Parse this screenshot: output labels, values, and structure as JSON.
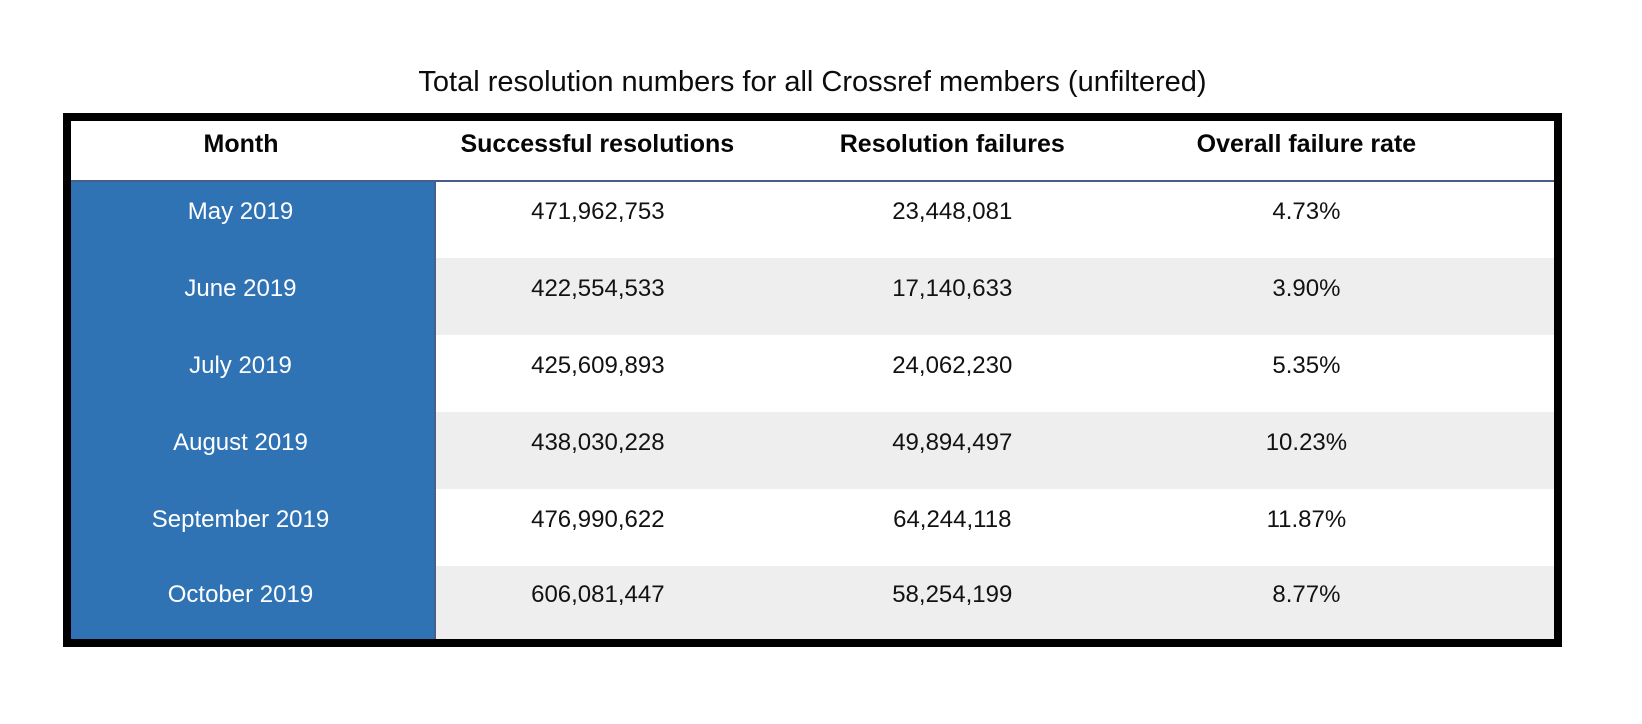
{
  "title": "Total resolution numbers for all Crossref members (unfiltered)",
  "table": {
    "columns": {
      "month": "Month",
      "successful": "Successful resolutions",
      "failures": "Resolution failures",
      "rate": "Overall failure rate"
    },
    "rows": [
      {
        "month": "May 2019",
        "successful": "471,962,753",
        "failures": "23,448,081",
        "rate": "4.73%"
      },
      {
        "month": "June 2019",
        "successful": "422,554,533",
        "failures": "17,140,633",
        "rate": "3.90%"
      },
      {
        "month": "July 2019",
        "successful": "425,609,893",
        "failures": "24,062,230",
        "rate": "5.35%"
      },
      {
        "month": "August 2019",
        "successful": "438,030,228",
        "failures": "49,894,497",
        "rate": "10.23%"
      },
      {
        "month": "September 2019",
        "successful": "476,990,622",
        "failures": "64,244,118",
        "rate": "11.87%"
      },
      {
        "month": "October 2019",
        "successful": "606,081,447",
        "failures": "58,254,199",
        "rate": "8.77%"
      }
    ]
  },
  "colors": {
    "month_column_blue": "#2f73b4",
    "stripe_gray": "#eeeeee",
    "divider_navy": "#465f8c",
    "outer_border_black": "#000000",
    "month_text_white": "#ffffff"
  },
  "chart_data": {
    "type": "table",
    "title": "Total resolution numbers for all Crossref members (unfiltered)",
    "columns": [
      "Month",
      "Successful resolutions",
      "Resolution failures",
      "Overall failure rate"
    ],
    "rows": [
      [
        "May 2019",
        471962753,
        23448081,
        "4.73%"
      ],
      [
        "June 2019",
        422554533,
        17140633,
        "3.90%"
      ],
      [
        "July 2019",
        425609893,
        24062230,
        "5.35%"
      ],
      [
        "August 2019",
        438030228,
        49894497,
        "10.23%"
      ],
      [
        "September 2019",
        476990622,
        64244118,
        "11.87%"
      ],
      [
        "October 2019",
        606081447,
        58254199,
        "8.77%"
      ]
    ],
    "layout": {
      "header_background": "#ffffff",
      "month_column_background": "#2f73b4",
      "row_striping": [
        "#ffffff",
        "#eeeeee"
      ],
      "outer_border": "8px black",
      "header_divider": "2px #465f8c"
    }
  }
}
